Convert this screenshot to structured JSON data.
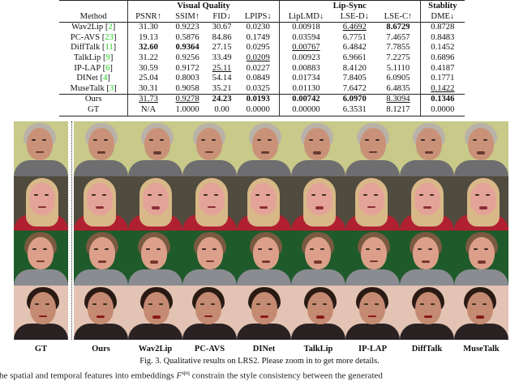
{
  "table": {
    "group_headers": {
      "visual_quality": "Visual Quality",
      "lip_sync": "Lip-Sync",
      "stability": "Stablity"
    },
    "columns": [
      "Method",
      "PSNR↑",
      "SSIM↑",
      "FID↓",
      "LPIPS↓",
      "LipLMD↓",
      "LSE-D↓",
      "LSE-C↑",
      "DME↓"
    ],
    "rows": [
      {
        "method": "Wav2Lip",
        "cite": "2",
        "values": [
          "31.30",
          "0.9223",
          "30.67",
          "0.0230",
          "0.00918",
          "6.4692",
          "8.6729",
          "0.8728"
        ],
        "bold": [
          6
        ],
        "underline": [
          5
        ]
      },
      {
        "method": "PC-AVS",
        "cite": "23",
        "values": [
          "19.13",
          "0.5876",
          "84.86",
          "0.1749",
          "0.03594",
          "6.7751",
          "7.4657",
          "0.8483"
        ],
        "bold": [],
        "underline": []
      },
      {
        "method": "DiffTalk",
        "cite": "11",
        "values": [
          "32.60",
          "0.9364",
          "27.15",
          "0.0295",
          "0.00767",
          "6.4842",
          "7.7855",
          "0.1452"
        ],
        "bold": [
          0,
          1
        ],
        "underline": [
          4
        ]
      },
      {
        "method": "TalkLip",
        "cite": "9",
        "values": [
          "31.22",
          "0.9256",
          "33.49",
          "0.0209",
          "0.00923",
          "6.9661",
          "7.2275",
          "0.6896"
        ],
        "bold": [],
        "underline": [
          3
        ]
      },
      {
        "method": "IP-LAP",
        "cite": "6",
        "values": [
          "30.59",
          "0.9172",
          "25.11",
          "0.0227",
          "0.00883",
          "8.4120",
          "5.1110",
          "0.4187"
        ],
        "bold": [],
        "underline": [
          2
        ]
      },
      {
        "method": "DINet",
        "cite": "4",
        "values": [
          "25.04",
          "0.8003",
          "54.14",
          "0.0849",
          "0.01734",
          "7.8405",
          "6.0905",
          "0.1771"
        ],
        "bold": [],
        "underline": []
      },
      {
        "method": "MuseTalk",
        "cite": "3",
        "values": [
          "30.31",
          "0.9058",
          "35.21",
          "0.0325",
          "0.01130",
          "7.6472",
          "6.4835",
          "0.1422"
        ],
        "bold": [],
        "underline": [
          7
        ]
      }
    ],
    "ours": {
      "method": "Ours",
      "values": [
        "31.73",
        "0.9278",
        "24.23",
        "0.0193",
        "0.00742",
        "6.0970",
        "8.3094",
        "0.1346"
      ],
      "bold": [
        2,
        3,
        4,
        5,
        7
      ],
      "underline": [
        0,
        1,
        6
      ]
    },
    "gt": {
      "method": "GT",
      "values": [
        "N/A",
        "1.0000",
        "0.00",
        "0.0000",
        "0.00000",
        "6.3531",
        "8.1217",
        "0.0000"
      ]
    }
  },
  "figure": {
    "column_labels": [
      "GT",
      "Ours",
      "Wav2Lip",
      "PC-AVS",
      "DINet",
      "TalkLip",
      "IP-LAP",
      "DiffTalk",
      "MuseTalk"
    ],
    "rows": [
      {
        "subject": "bearded man with gray hair",
        "bg": "#c9c98a",
        "skin": "#c99278",
        "hair": "#b9b2a8",
        "body": "#6e6e70",
        "mouth": "#6a3a32"
      },
      {
        "subject": "blonde woman",
        "bg": "#4f4b3e",
        "skin": "#e4a398",
        "hair": "#d8b888",
        "body": "#b02030",
        "mouth": "#8a3038"
      },
      {
        "subject": "man on green background",
        "bg": "#1f5a2a",
        "skin": "#dca08a",
        "hair": "#7a5a40",
        "body": "#8a8c92",
        "mouth": "#7a3530"
      },
      {
        "subject": "woman with short dark hair",
        "bg": "#e3c3b3",
        "skin": "#c48a72",
        "hair": "#2a1a14",
        "body": "#2a2222",
        "mouth": "#8a1a1a"
      }
    ],
    "caption": "Fig. 3.  Qualitative results on LRS2. Please zoom in to get more details.",
    "cut_body_text": "the spatial and temporal features into embeddings F^{SPQ} ... constrain the style consistency between the generated"
  },
  "colors": {
    "citation": "#1fd11f",
    "rule": "#222222"
  }
}
